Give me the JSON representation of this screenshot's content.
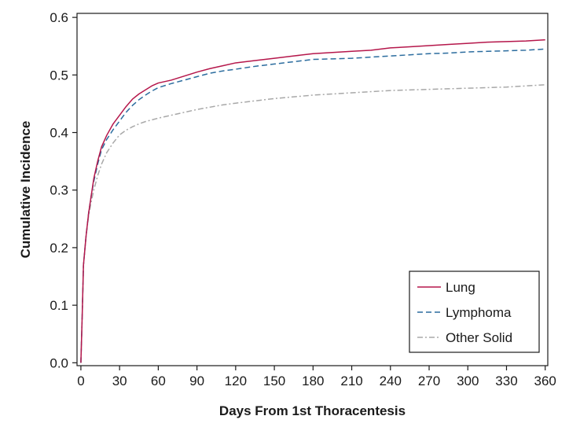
{
  "chart_data": {
    "type": "line",
    "title": "",
    "xlabel": "Days From 1st Thoracentesis",
    "ylabel": "Cumulative Incidence",
    "xlim": [
      -3,
      362
    ],
    "ylim": [
      -0.005,
      0.607
    ],
    "xticks": [
      0,
      30,
      60,
      90,
      120,
      150,
      180,
      210,
      240,
      270,
      300,
      330,
      360
    ],
    "yticks": [
      0.0,
      0.1,
      0.2,
      0.3,
      0.4,
      0.5,
      0.6
    ],
    "ytick_labels": [
      "0.0",
      "0.1",
      "0.2",
      "0.3",
      "0.4",
      "0.5",
      "0.6"
    ],
    "grid": false,
    "legend_position": "bottom-right",
    "series": [
      {
        "name": "Lung",
        "color": "#b5174b",
        "dash": "solid",
        "points": [
          [
            0,
            0.0
          ],
          [
            1,
            0.08
          ],
          [
            2,
            0.17
          ],
          [
            4,
            0.22
          ],
          [
            6,
            0.26
          ],
          [
            8,
            0.29
          ],
          [
            10,
            0.32
          ],
          [
            13,
            0.35
          ],
          [
            16,
            0.375
          ],
          [
            20,
            0.395
          ],
          [
            25,
            0.415
          ],
          [
            30,
            0.43
          ],
          [
            35,
            0.445
          ],
          [
            40,
            0.458
          ],
          [
            45,
            0.467
          ],
          [
            50,
            0.474
          ],
          [
            55,
            0.481
          ],
          [
            60,
            0.486
          ],
          [
            70,
            0.491
          ],
          [
            80,
            0.498
          ],
          [
            90,
            0.505
          ],
          [
            100,
            0.511
          ],
          [
            110,
            0.516
          ],
          [
            120,
            0.521
          ],
          [
            135,
            0.525
          ],
          [
            150,
            0.529
          ],
          [
            165,
            0.533
          ],
          [
            180,
            0.537
          ],
          [
            195,
            0.539
          ],
          [
            210,
            0.541
          ],
          [
            225,
            0.543
          ],
          [
            240,
            0.547
          ],
          [
            255,
            0.549
          ],
          [
            270,
            0.551
          ],
          [
            285,
            0.553
          ],
          [
            300,
            0.555
          ],
          [
            315,
            0.557
          ],
          [
            330,
            0.558
          ],
          [
            345,
            0.559
          ],
          [
            360,
            0.561
          ]
        ]
      },
      {
        "name": "Lymphoma",
        "color": "#2b6c9e",
        "dash": "dashed",
        "points": [
          [
            0,
            0.0
          ],
          [
            1,
            0.08
          ],
          [
            2,
            0.17
          ],
          [
            4,
            0.22
          ],
          [
            6,
            0.26
          ],
          [
            8,
            0.29
          ],
          [
            10,
            0.315
          ],
          [
            13,
            0.345
          ],
          [
            16,
            0.37
          ],
          [
            20,
            0.388
          ],
          [
            25,
            0.405
          ],
          [
            30,
            0.42
          ],
          [
            35,
            0.435
          ],
          [
            40,
            0.447
          ],
          [
            45,
            0.457
          ],
          [
            50,
            0.465
          ],
          [
            55,
            0.472
          ],
          [
            60,
            0.478
          ],
          [
            70,
            0.485
          ],
          [
            80,
            0.491
          ],
          [
            90,
            0.497
          ],
          [
            100,
            0.503
          ],
          [
            110,
            0.507
          ],
          [
            120,
            0.51
          ],
          [
            135,
            0.515
          ],
          [
            150,
            0.519
          ],
          [
            165,
            0.523
          ],
          [
            180,
            0.527
          ],
          [
            195,
            0.528
          ],
          [
            210,
            0.529
          ],
          [
            225,
            0.531
          ],
          [
            240,
            0.533
          ],
          [
            255,
            0.535
          ],
          [
            270,
            0.537
          ],
          [
            285,
            0.538
          ],
          [
            300,
            0.54
          ],
          [
            315,
            0.541
          ],
          [
            330,
            0.542
          ],
          [
            345,
            0.543
          ],
          [
            360,
            0.545
          ]
        ]
      },
      {
        "name": "Other Solid",
        "color": "#a8a8a8",
        "dash": "dashdot",
        "points": [
          [
            0,
            0.0
          ],
          [
            1,
            0.08
          ],
          [
            2,
            0.17
          ],
          [
            4,
            0.22
          ],
          [
            6,
            0.255
          ],
          [
            8,
            0.28
          ],
          [
            10,
            0.3
          ],
          [
            13,
            0.325
          ],
          [
            16,
            0.345
          ],
          [
            20,
            0.365
          ],
          [
            25,
            0.382
          ],
          [
            30,
            0.396
          ],
          [
            35,
            0.404
          ],
          [
            40,
            0.41
          ],
          [
            45,
            0.415
          ],
          [
            50,
            0.419
          ],
          [
            55,
            0.422
          ],
          [
            60,
            0.425
          ],
          [
            70,
            0.43
          ],
          [
            80,
            0.435
          ],
          [
            90,
            0.44
          ],
          [
            100,
            0.444
          ],
          [
            110,
            0.448
          ],
          [
            120,
            0.451
          ],
          [
            135,
            0.455
          ],
          [
            150,
            0.459
          ],
          [
            165,
            0.462
          ],
          [
            180,
            0.465
          ],
          [
            195,
            0.467
          ],
          [
            210,
            0.469
          ],
          [
            225,
            0.471
          ],
          [
            240,
            0.473
          ],
          [
            255,
            0.474
          ],
          [
            270,
            0.475
          ],
          [
            285,
            0.476
          ],
          [
            300,
            0.477
          ],
          [
            315,
            0.478
          ],
          [
            330,
            0.479
          ],
          [
            345,
            0.481
          ],
          [
            360,
            0.483
          ]
        ]
      }
    ]
  }
}
